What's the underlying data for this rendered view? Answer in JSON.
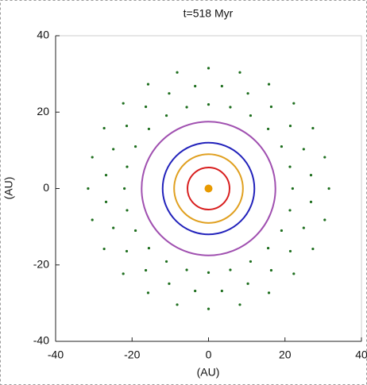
{
  "chart_data": {
    "type": "scatter",
    "title": "t=518 Myr",
    "x_label": "(AU)",
    "y_label": "(AU)",
    "xlim": [
      -40,
      40
    ],
    "ylim": [
      -40,
      40
    ],
    "xticks": [
      -40,
      -20,
      0,
      20,
      40
    ],
    "yticks": [
      -40,
      -20,
      0,
      20,
      40
    ],
    "particles": {
      "color": "#1d6e1d",
      "x": [
        22,
        21.3,
        19.1,
        15.6,
        11,
        5.7,
        0,
        -5.7,
        -11,
        -15.6,
        -19.1,
        -21.3,
        -22,
        -21.3,
        -19.1,
        -15.6,
        -11,
        -5.7,
        0,
        5.7,
        11,
        15.6,
        19.1,
        21.3,
        26.8,
        24.9,
        21.4,
        16.4,
        10.3,
        3.5,
        -3.5,
        -10.3,
        -16.4,
        -21.4,
        -24.9,
        -26.8,
        -26.8,
        -24.9,
        -21.4,
        -16.4,
        -10.3,
        -3.5,
        3.5,
        10.3,
        16.4,
        21.4,
        24.9,
        26.8,
        31.5,
        30.4,
        27.3,
        22.3,
        15.8,
        8.2,
        0,
        -8.2,
        -15.8,
        -22.3,
        -27.3,
        -30.4,
        -31.5,
        -30.4,
        -27.3,
        -22.3,
        -15.8,
        -8.2,
        0,
        8.2,
        15.8,
        22.3,
        27.3,
        30.4
      ],
      "y": [
        0,
        5.7,
        11,
        15.6,
        19.1,
        21.3,
        22,
        21.3,
        19.1,
        15.6,
        11,
        5.7,
        0,
        -5.7,
        -11,
        -15.6,
        -19.1,
        -21.3,
        -22,
        -21.3,
        -19.1,
        -15.6,
        -11,
        -5.7,
        3.5,
        10.3,
        16.4,
        21.4,
        24.9,
        26.8,
        26.8,
        24.9,
        21.4,
        16.4,
        10.3,
        3.5,
        -3.5,
        -10.3,
        -16.4,
        -21.4,
        -24.9,
        -26.8,
        -26.8,
        -24.9,
        -21.4,
        -16.4,
        -10.3,
        -3.5,
        0,
        8.2,
        15.8,
        22.3,
        27.3,
        30.4,
        31.5,
        30.4,
        27.3,
        22.3,
        15.8,
        8.2,
        0,
        -8.2,
        -15.8,
        -22.3,
        -27.3,
        -30.4,
        -31.5,
        -30.4,
        -27.3,
        -22.3,
        -15.8,
        -8.2
      ]
    },
    "orbits": [
      {
        "color": "#d81e1e",
        "radius": 5.5
      },
      {
        "color": "#e0a020",
        "radius": 9
      },
      {
        "color": "#2222bb",
        "radius": 12
      },
      {
        "color": "#a050b0",
        "radius": 17.5
      }
    ],
    "star": {
      "color": "#e89a00",
      "x": 0,
      "y": 0
    }
  }
}
